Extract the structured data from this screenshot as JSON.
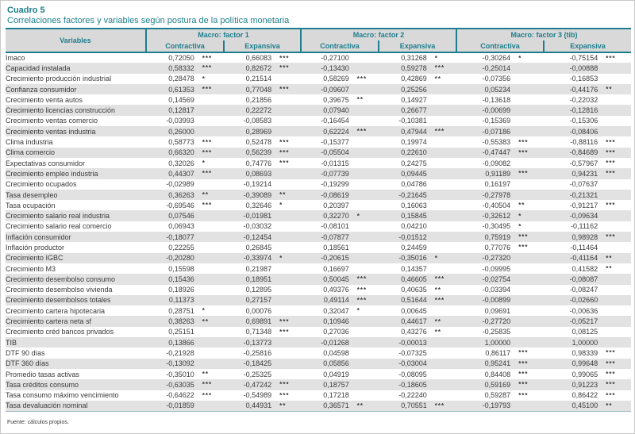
{
  "title": "Cuadro 5",
  "subtitle": "Correlaciones factores y variables según postura de la política monetaria",
  "footer": "Fuente: cálculos propios.",
  "colors": {
    "accent_teal": "#1e7e8d",
    "header_bg": "#d9d9d9",
    "row_stripe": "#e2e2e2",
    "text": "#3a3a3a"
  },
  "table": {
    "variables_header": "Variables",
    "groups": [
      {
        "label": "Macro: factor 1"
      },
      {
        "label": "Macro: factor 2"
      },
      {
        "label": "Macro: factor 3 (tib)"
      }
    ],
    "subheaders": [
      "Contractiva",
      "Expansiva",
      "Contractiva",
      "Expansiva",
      "Contractiva",
      "Expansiva"
    ],
    "rows": [
      {
        "variable": "Imaco",
        "values": [
          "0,72050",
          "0,66083",
          "-0,27100",
          "0,31268",
          "-0,30264",
          "-0,75154"
        ],
        "sig": [
          "***",
          "***",
          "",
          "*",
          "*",
          "***"
        ]
      },
      {
        "variable": "Capacidad instalada",
        "values": [
          "0,58332",
          "0,82672",
          "-0,13430",
          "0,59278",
          "-0,25014",
          "-0,00888"
        ],
        "sig": [
          "***",
          "***",
          "",
          "***",
          "",
          ""
        ]
      },
      {
        "variable": "Crecimiento producción industrial",
        "values": [
          "0,28478",
          "0,21514",
          "0,58269",
          "0,42869",
          "-0,07356",
          "-0,16853"
        ],
        "sig": [
          "*",
          "",
          "***",
          "**",
          "",
          ""
        ]
      },
      {
        "variable": "Confianza consumidor",
        "values": [
          "0,61353",
          "0,77048",
          "-0,09607",
          "0,25256",
          "0,05234",
          "-0,44176"
        ],
        "sig": [
          "***",
          "***",
          "",
          "",
          "",
          "**"
        ]
      },
      {
        "variable": "Crecimiento venta autos",
        "values": [
          "0,14569",
          "0,21856",
          "0,39675",
          "0,14927",
          "-0,13618",
          "-0,22032"
        ],
        "sig": [
          "",
          "",
          "**",
          "",
          "",
          ""
        ]
      },
      {
        "variable": "Crecimiento licencias construcción",
        "values": [
          "0,12817",
          "0,22272",
          "0,07940",
          "0,26677",
          "-0,00699",
          "-0,12816"
        ],
        "sig": [
          "",
          "",
          "",
          "",
          "",
          ""
        ]
      },
      {
        "variable": "Crecimiento ventas comercio",
        "values": [
          "-0,03993",
          "-0,08583",
          "-0,16454",
          "-0,10381",
          "-0,15369",
          "-0,15306"
        ],
        "sig": [
          "",
          "",
          "",
          "",
          "",
          ""
        ]
      },
      {
        "variable": "Crecimiento ventas industria",
        "values": [
          "0,26000",
          "0,28969",
          "0,62224",
          "0,47944",
          "-0,07186",
          "-0,08406"
        ],
        "sig": [
          "",
          "",
          "***",
          "***",
          "",
          ""
        ]
      },
      {
        "variable": "Clima industria",
        "values": [
          "0,58773",
          "0,52478",
          "-0,15377",
          "0,19974",
          "-0,55383",
          "-0,88116"
        ],
        "sig": [
          "***",
          "***",
          "",
          "",
          "***",
          "***"
        ]
      },
      {
        "variable": "Clima comercio",
        "values": [
          "0,66320",
          "0,56239",
          "-0,05504",
          "0,22610",
          "-0,47447",
          "-0,84689"
        ],
        "sig": [
          "***",
          "***",
          "",
          "",
          "***",
          "***"
        ]
      },
      {
        "variable": "Expectativas consumidor",
        "values": [
          "0,32026",
          "0,74776",
          "-0,01315",
          "0,24275",
          "-0,09082",
          "-0,57967"
        ],
        "sig": [
          "*",
          "***",
          "",
          "",
          "",
          "***"
        ]
      },
      {
        "variable": "Crecimiento empleo industria",
        "values": [
          "0,44307",
          "0,08693",
          "-0,07739",
          "0,09445",
          "0,91189",
          "0,94231"
        ],
        "sig": [
          "***",
          "",
          "",
          "",
          "***",
          "***"
        ]
      },
      {
        "variable": "Crecimiento ocupados",
        "values": [
          "-0,02989",
          "-0,19214",
          "-0,19299",
          "0,04786",
          "0,16197",
          "-0,07637"
        ],
        "sig": [
          "",
          "",
          "",
          "",
          "",
          ""
        ]
      },
      {
        "variable": "Tasa desempleo",
        "values": [
          "0,36263",
          "-0,39089",
          "-0,08619",
          "-0,21645",
          "-0,27978",
          "-0,21321"
        ],
        "sig": [
          "**",
          "**",
          "",
          "",
          "",
          ""
        ]
      },
      {
        "variable": "Tasa ocupación",
        "values": [
          "-0,69546",
          "0,32646",
          "0,20397",
          "0,16063",
          "-0,40504",
          "-0,91217"
        ],
        "sig": [
          "***",
          "*",
          "",
          "",
          "**",
          "***"
        ]
      },
      {
        "variable": "Crecimiento salario real industria",
        "values": [
          "0,07546",
          "-0,01981",
          "0,32270",
          "0,15845",
          "-0,32612",
          "-0,09634"
        ],
        "sig": [
          "",
          "",
          "*",
          "",
          "*",
          ""
        ]
      },
      {
        "variable": "Crecimiento salario real comercio",
        "values": [
          "0,06943",
          "-0,03032",
          "-0,08101",
          "0,04210",
          "-0,30495",
          "-0,11162"
        ],
        "sig": [
          "",
          "",
          "",
          "",
          "*",
          ""
        ]
      },
      {
        "variable": "Inflación consumidor",
        "values": [
          "-0,18077",
          "-0,12454",
          "-0,07877",
          "-0,01512",
          "0,75919",
          "0,98928"
        ],
        "sig": [
          "",
          "",
          "",
          "",
          "***",
          "***"
        ]
      },
      {
        "variable": "Inflación productor",
        "values": [
          "0,22255",
          "0,26845",
          "0,18561",
          "0,24459",
          "0,77076",
          "-0,11464"
        ],
        "sig": [
          "",
          "",
          "",
          "",
          "***",
          ""
        ]
      },
      {
        "variable": "Crecimiento IGBC",
        "values": [
          "-0,20280",
          "-0,33974",
          "-0,20615",
          "-0,35016",
          "-0,27320",
          "-0,41164"
        ],
        "sig": [
          "",
          "*",
          "",
          "*",
          "",
          "**"
        ]
      },
      {
        "variable": "Crecimiento M3",
        "values": [
          "0,15598",
          "0,21987",
          "0,16697",
          "0,14357",
          "-0,09995",
          "0,41582"
        ],
        "sig": [
          "",
          "",
          "",
          "",
          "",
          "**"
        ]
      },
      {
        "variable": "Crecimiento desembolso consumo",
        "values": [
          "0,15436",
          "0,18951",
          "0,50045",
          "0,46605",
          "-0,02754",
          "-0,08087"
        ],
        "sig": [
          "",
          "",
          "***",
          "***",
          "",
          ""
        ]
      },
      {
        "variable": "Crecimiento desembolso vivienda",
        "values": [
          "0,18926",
          "0,12895",
          "0,49376",
          "0,40635",
          "-0,03394",
          "-0,08247"
        ],
        "sig": [
          "",
          "",
          "***",
          "**",
          "",
          ""
        ]
      },
      {
        "variable": "Crecimiento desembolsos totales",
        "values": [
          "0,11373",
          "0,27157",
          "0,49114",
          "0,51644",
          "-0,00899",
          "-0,02660"
        ],
        "sig": [
          "",
          "",
          "***",
          "***",
          "",
          ""
        ]
      },
      {
        "variable": "Crecimiento cartera hipotecaria",
        "values": [
          "0,28751",
          "0,00076",
          "0,32047",
          "0,00645",
          "0,09691",
          "-0,00636"
        ],
        "sig": [
          "*",
          "",
          "*",
          "",
          "",
          ""
        ]
      },
      {
        "variable": "Crecimiento cartera neta sf",
        "values": [
          "0,38263",
          "0,69891",
          "0,10946",
          "0,44617",
          "-0,27720",
          "-0,05217"
        ],
        "sig": [
          "**",
          "***",
          "",
          "**",
          "",
          ""
        ]
      },
      {
        "variable": "Crecimiento créd bancos privados",
        "values": [
          "0,25151",
          "0,71348",
          "0,27036",
          "0,43276",
          "-0,25835",
          "0,08125"
        ],
        "sig": [
          "",
          "***",
          "",
          "**",
          "",
          ""
        ]
      },
      {
        "variable": "TIB",
        "values": [
          "0,13866",
          "-0,13773",
          "-0,01268",
          "-0,00013",
          "1,00000",
          "1,00000"
        ],
        "sig": [
          "",
          "",
          "",
          "",
          "",
          ""
        ]
      },
      {
        "variable": "DTF 90 días",
        "values": [
          "-0,21928",
          "-0,25816",
          "0,04598",
          "-0,07325",
          "0,86117",
          "0,98339"
        ],
        "sig": [
          "",
          "",
          "",
          "",
          "***",
          "***"
        ]
      },
      {
        "variable": "DTF 360 días",
        "values": [
          "-0,13092",
          "-0,18425",
          "0,05856",
          "-0,03004",
          "0,95241",
          "0,99648"
        ],
        "sig": [
          "",
          "",
          "",
          "",
          "***",
          "***"
        ]
      },
      {
        "variable": "Promedio tasas activas",
        "values": [
          "-0,35010",
          "-0,25325",
          "0,04919",
          "-0,08095",
          "0,84408",
          "0,99065"
        ],
        "sig": [
          "**",
          "",
          "",
          "",
          "***",
          "***"
        ]
      },
      {
        "variable": "Tasa créditos consumo",
        "values": [
          "-0,63035",
          "-0,47242",
          "0,18757",
          "-0,18605",
          "0,59169",
          "0,91223"
        ],
        "sig": [
          "***",
          "***",
          "",
          "",
          "***",
          "***"
        ]
      },
      {
        "variable": "Tasa consumo máximo vencimiento",
        "values": [
          "-0,64622",
          "-0,54989",
          "0,17218",
          "-0,22240",
          "0,59287",
          "0,86422"
        ],
        "sig": [
          "***",
          "***",
          "",
          "",
          "***",
          "***"
        ]
      },
      {
        "variable": "Tasa devaluación nominal",
        "values": [
          "-0,01859",
          "0,44931",
          "0,36571",
          "0,70551",
          "-0,19793",
          "0,45100"
        ],
        "sig": [
          "",
          "**",
          "**",
          "***",
          "",
          "**"
        ]
      }
    ]
  }
}
